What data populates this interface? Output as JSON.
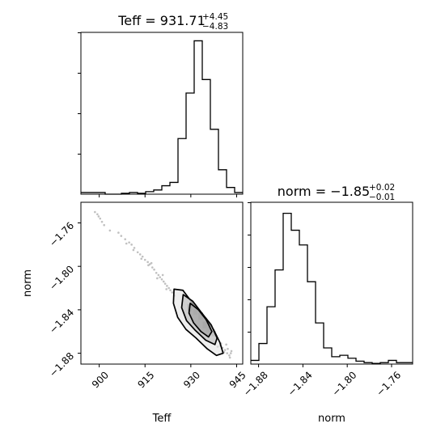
{
  "chart_data": [
    {
      "type": "histogram",
      "panel": "Teff marginal",
      "title": {
        "param": "Teff",
        "value": "931.71",
        "upper": "+4.45",
        "lower": "−4.83"
      },
      "xlim": [
        894,
        947
      ],
      "bins": [
        {
          "x0": 894.0,
          "x1": 896.65,
          "count": 2
        },
        {
          "x0": 896.65,
          "x1": 899.3,
          "count": 2
        },
        {
          "x0": 899.3,
          "x1": 901.95,
          "count": 2
        },
        {
          "x0": 901.95,
          "x1": 904.6,
          "count": 0
        },
        {
          "x0": 904.6,
          "x1": 907.25,
          "count": 0
        },
        {
          "x0": 907.25,
          "x1": 909.9,
          "count": 1
        },
        {
          "x0": 909.9,
          "x1": 912.55,
          "count": 2
        },
        {
          "x0": 912.55,
          "x1": 915.2,
          "count": 1
        },
        {
          "x0": 915.2,
          "x1": 917.85,
          "count": 3
        },
        {
          "x0": 917.85,
          "x1": 920.5,
          "count": 5
        },
        {
          "x0": 920.5,
          "x1": 923.15,
          "count": 10
        },
        {
          "x0": 923.15,
          "x1": 925.8,
          "count": 14
        },
        {
          "x0": 925.8,
          "x1": 928.45,
          "count": 66
        },
        {
          "x0": 928.45,
          "x1": 931.1,
          "count": 120
        },
        {
          "x0": 931.1,
          "x1": 933.75,
          "count": 182
        },
        {
          "x0": 933.75,
          "x1": 936.4,
          "count": 136
        },
        {
          "x0": 936.4,
          "x1": 939.05,
          "count": 77
        },
        {
          "x0": 939.05,
          "x1": 941.7,
          "count": 29
        },
        {
          "x0": 941.7,
          "x1": 944.35,
          "count": 8
        },
        {
          "x0": 944.35,
          "x1": 947.0,
          "count": 2
        }
      ],
      "ylim": [
        0,
        192
      ]
    },
    {
      "type": "histogram",
      "panel": "norm marginal",
      "title": {
        "param": "norm",
        "value": "−1.85",
        "upper": "+0.02",
        "lower": "−0.01"
      },
      "xlim": [
        -1.887,
        -1.741
      ],
      "bins": [
        {
          "x0": -1.887,
          "x1": -1.8797,
          "count": 5
        },
        {
          "x0": -1.8797,
          "x1": -1.8724,
          "count": 28
        },
        {
          "x0": -1.8724,
          "x1": -1.8651,
          "count": 78
        },
        {
          "x0": -1.8651,
          "x1": -1.8578,
          "count": 128
        },
        {
          "x0": -1.8578,
          "x1": -1.8505,
          "count": 205
        },
        {
          "x0": -1.8505,
          "x1": -1.8432,
          "count": 182
        },
        {
          "x0": -1.8432,
          "x1": -1.8359,
          "count": 162
        },
        {
          "x0": -1.8359,
          "x1": -1.8286,
          "count": 112
        },
        {
          "x0": -1.8286,
          "x1": -1.8213,
          "count": 56
        },
        {
          "x0": -1.8213,
          "x1": -1.814,
          "count": 22
        },
        {
          "x0": -1.814,
          "x1": -1.8067,
          "count": 10
        },
        {
          "x0": -1.8067,
          "x1": -1.7994,
          "count": 12
        },
        {
          "x0": -1.7994,
          "x1": -1.7921,
          "count": 8
        },
        {
          "x0": -1.7921,
          "x1": -1.7848,
          "count": 4
        },
        {
          "x0": -1.7848,
          "x1": -1.7775,
          "count": 2
        },
        {
          "x0": -1.7775,
          "x1": -1.7702,
          "count": 1
        },
        {
          "x0": -1.7702,
          "x1": -1.7629,
          "count": 2
        },
        {
          "x0": -1.7629,
          "x1": -1.7556,
          "count": 5
        },
        {
          "x0": -1.7556,
          "x1": -1.7483,
          "count": 2
        },
        {
          "x0": -1.7483,
          "x1": -1.741,
          "count": 2
        }
      ],
      "ylim": [
        0,
        220
      ],
      "xticks": [
        -1.88,
        -1.84,
        -1.8,
        -1.76
      ],
      "xtick_labels": [
        "−1.88",
        "−1.84",
        "−1.80",
        "−1.76"
      ],
      "xlabel": "norm"
    },
    {
      "type": "scatter",
      "panel": "Teff vs norm 2D density",
      "xlabel": "Teff",
      "ylabel": "norm",
      "xlim": [
        894,
        947
      ],
      "ylim": [
        -1.89,
        -1.741
      ],
      "xticks": [
        900,
        915,
        930,
        945
      ],
      "xtick_labels": [
        "900",
        "915",
        "930",
        "945"
      ],
      "yticks": [
        -1.76,
        -1.8,
        -1.84,
        -1.88
      ],
      "ytick_labels": [
        "−1.76",
        "−1.80",
        "−1.84",
        "−1.88"
      ],
      "sparse_points": [
        [
          898.6,
          -1.75
        ],
        [
          899.4,
          -1.752
        ],
        [
          900.3,
          -1.756
        ],
        [
          900.9,
          -1.759
        ],
        [
          899.8,
          -1.754
        ],
        [
          901.6,
          -1.762
        ],
        [
          903.5,
          -1.767
        ],
        [
          906.3,
          -1.769
        ],
        [
          907.2,
          -1.772
        ],
        [
          908.5,
          -1.775
        ],
        [
          909.8,
          -1.778
        ],
        [
          910.6,
          -1.78
        ],
        [
          911.5,
          -1.783
        ],
        [
          912.6,
          -1.787
        ],
        [
          913.4,
          -1.789
        ],
        [
          914.2,
          -1.791
        ],
        [
          915.0,
          -1.794
        ],
        [
          915.9,
          -1.796
        ],
        [
          916.6,
          -1.798
        ],
        [
          917.4,
          -1.801
        ],
        [
          918.0,
          -1.803
        ],
        [
          918.7,
          -1.806
        ],
        [
          919.4,
          -1.808
        ],
        [
          919.9,
          -1.81
        ],
        [
          920.5,
          -1.812
        ],
        [
          921.1,
          -1.814
        ],
        [
          921.6,
          -1.816
        ],
        [
          922.2,
          -1.818
        ],
        [
          922.8,
          -1.82
        ],
        [
          923.3,
          -1.822
        ],
        [
          917.1,
          -1.797
        ],
        [
          916.1,
          -1.799
        ],
        [
          919.0,
          -1.811
        ],
        [
          920.8,
          -1.808
        ],
        [
          922.0,
          -1.821
        ],
        [
          923.9,
          -1.824
        ],
        [
          924.6,
          -1.827
        ],
        [
          913.8,
          -1.793
        ],
        [
          911.2,
          -1.785
        ],
        [
          908.9,
          -1.779
        ],
        [
          939.6,
          -1.873
        ],
        [
          940.4,
          -1.875
        ],
        [
          941.2,
          -1.877
        ],
        [
          941.9,
          -1.88
        ],
        [
          942.6,
          -1.882
        ],
        [
          942.1,
          -1.876
        ],
        [
          940.9,
          -1.879
        ],
        [
          943.3,
          -1.878
        ],
        [
          942.8,
          -1.884
        ],
        [
          939.9,
          -1.871
        ],
        [
          941.6,
          -1.872
        ],
        [
          938.8,
          -1.874
        ],
        [
          943.1,
          -1.88
        ]
      ],
      "contours": [
        [
          [
            924.5,
            -1.821
          ],
          [
            927.4,
            -1.822
          ],
          [
            930.6,
            -1.834
          ],
          [
            934.2,
            -1.846
          ],
          [
            937.4,
            -1.858
          ],
          [
            939.5,
            -1.87
          ],
          [
            940.6,
            -1.88
          ],
          [
            938.4,
            -1.882
          ],
          [
            935.4,
            -1.876
          ],
          [
            931.7,
            -1.866
          ],
          [
            928.4,
            -1.858
          ],
          [
            925.7,
            -1.847
          ],
          [
            924.3,
            -1.834
          ]
        ],
        [
          [
            927.5,
            -1.826
          ],
          [
            930.6,
            -1.832
          ],
          [
            933.6,
            -1.843
          ],
          [
            936.7,
            -1.854
          ],
          [
            938.6,
            -1.866
          ],
          [
            937.9,
            -1.872
          ],
          [
            934.9,
            -1.868
          ],
          [
            931.5,
            -1.859
          ],
          [
            928.6,
            -1.85
          ],
          [
            927.0,
            -1.838
          ]
        ],
        [
          [
            929.8,
            -1.834
          ],
          [
            932.5,
            -1.84
          ],
          [
            935.0,
            -1.849
          ],
          [
            936.9,
            -1.86
          ],
          [
            935.8,
            -1.865
          ],
          [
            933.3,
            -1.86
          ],
          [
            930.9,
            -1.852
          ],
          [
            929.4,
            -1.843
          ]
        ]
      ],
      "dense_blocks": [
        {
          "x": 929.6,
          "y": -1.838,
          "w": 1.3,
          "h": 0.0065,
          "level": "dark"
        },
        {
          "x": 933.2,
          "y": -1.846,
          "w": 1.5,
          "h": 0.0065,
          "level": "dark"
        },
        {
          "x": 934.6,
          "y": -1.854,
          "w": 1.5,
          "h": 0.0065,
          "level": "dark"
        },
        {
          "x": 935.7,
          "y": -1.858,
          "w": 1.3,
          "h": 0.005,
          "level": "mid"
        },
        {
          "x": 931.5,
          "y": -1.842,
          "w": 1.3,
          "h": 0.005,
          "level": "mid"
        },
        {
          "x": 937.4,
          "y": -1.862,
          "w": 1.3,
          "h": 0.005,
          "level": "light"
        }
      ]
    }
  ]
}
